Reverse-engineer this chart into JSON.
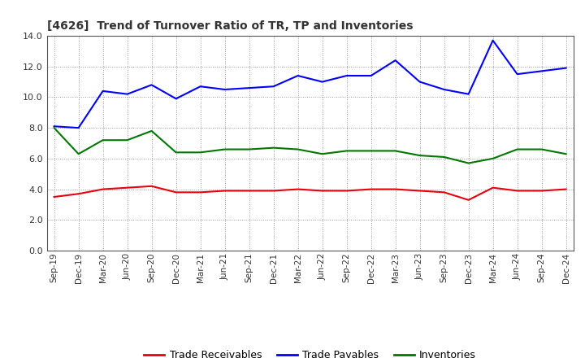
{
  "title": "[4626]  Trend of Turnover Ratio of TR, TP and Inventories",
  "x_labels": [
    "Sep-19",
    "Dec-19",
    "Mar-20",
    "Jun-20",
    "Sep-20",
    "Dec-20",
    "Mar-21",
    "Jun-21",
    "Sep-21",
    "Dec-21",
    "Mar-22",
    "Jun-22",
    "Sep-22",
    "Dec-22",
    "Mar-23",
    "Jun-23",
    "Sep-23",
    "Dec-23",
    "Mar-24",
    "Jun-24",
    "Sep-24",
    "Dec-24"
  ],
  "trade_receivables": [
    3.5,
    3.7,
    4.0,
    4.1,
    4.2,
    3.8,
    3.8,
    3.9,
    3.9,
    3.9,
    4.0,
    3.9,
    3.9,
    4.0,
    4.0,
    3.9,
    3.8,
    3.3,
    4.1,
    3.9,
    3.9,
    4.0
  ],
  "trade_payables": [
    8.1,
    8.0,
    10.4,
    10.2,
    10.8,
    9.9,
    10.7,
    10.5,
    10.6,
    10.7,
    11.4,
    11.0,
    11.4,
    11.4,
    12.4,
    11.0,
    10.5,
    10.2,
    13.7,
    11.5,
    11.7,
    11.9
  ],
  "inventories": [
    8.0,
    6.3,
    7.2,
    7.2,
    7.8,
    6.4,
    6.4,
    6.6,
    6.6,
    6.7,
    6.6,
    6.3,
    6.5,
    6.5,
    6.5,
    6.2,
    6.1,
    5.7,
    6.0,
    6.6,
    6.6,
    6.3
  ],
  "tr_color": "#e8000d",
  "tp_color": "#0000ff",
  "inv_color": "#007700",
  "ylim": [
    0,
    14.0
  ],
  "yticks": [
    0.0,
    2.0,
    4.0,
    6.0,
    8.0,
    10.0,
    12.0,
    14.0
  ],
  "legend_labels": [
    "Trade Receivables",
    "Trade Payables",
    "Inventories"
  ],
  "bg_color": "#ffffff",
  "grid_color": "#999999",
  "title_color": "#333333"
}
